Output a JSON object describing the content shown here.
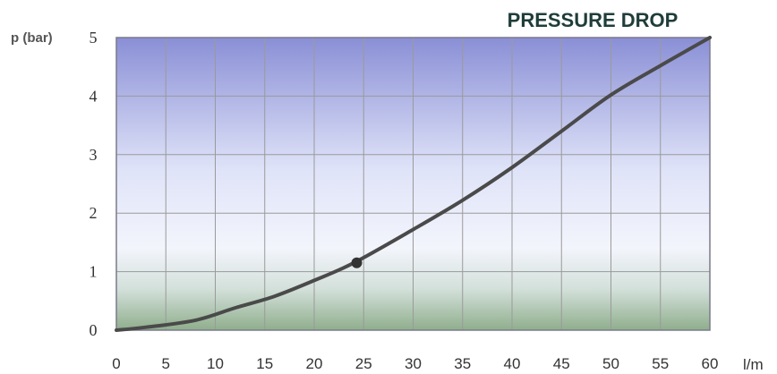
{
  "chart_data": {
    "type": "line",
    "title": "PRESSURE DROP",
    "ylabel": "p (bar)",
    "xlabel": "l/m",
    "xlim": [
      0,
      60
    ],
    "ylim": [
      0,
      5
    ],
    "x_ticks": [
      0,
      5,
      10,
      15,
      20,
      25,
      30,
      35,
      40,
      45,
      50,
      55,
      60
    ],
    "y_ticks": [
      0,
      1,
      2,
      3,
      4,
      5
    ],
    "grid": true,
    "series": [
      {
        "points": [
          [
            0,
            0
          ],
          [
            3,
            0.05
          ],
          [
            8,
            0.17
          ],
          [
            12,
            0.38
          ],
          [
            16,
            0.58
          ],
          [
            20,
            0.85
          ],
          [
            24,
            1.15
          ],
          [
            30,
            1.72
          ],
          [
            35,
            2.22
          ],
          [
            40,
            2.78
          ],
          [
            45,
            3.4
          ],
          [
            50,
            4.02
          ],
          [
            55,
            4.52
          ],
          [
            60,
            5.0
          ]
        ]
      }
    ],
    "highlight_point": [
      24.3,
      1.15
    ],
    "colors": {
      "line": "#4a4a4a",
      "title": "#1f3d3a",
      "plot_top": "#8c90d8",
      "plot_mid": "#f0f2fb",
      "plot_bottom": "#8fae8d"
    }
  }
}
